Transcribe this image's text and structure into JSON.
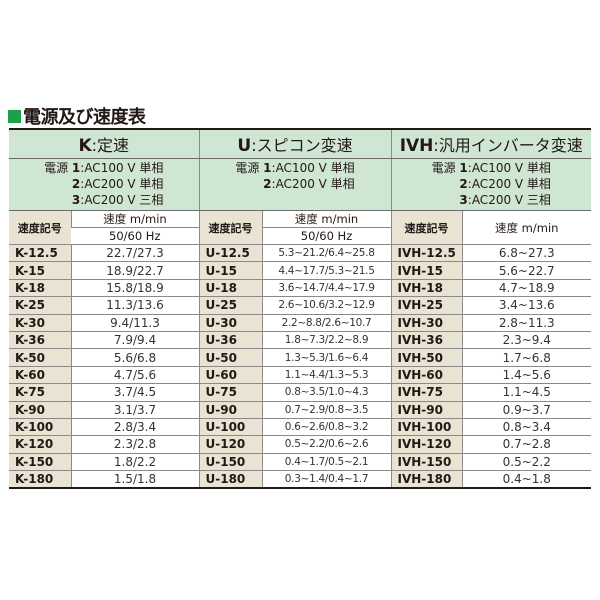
{
  "title": "電源及び速度表",
  "colors": {
    "accent": "#1aa14a",
    "header_bg": "#cfe6d3",
    "code_bg": "#e9e3d3"
  },
  "groups": [
    {
      "prefix": "K",
      "name": "定速",
      "power_label": "電源",
      "power": [
        [
          "1",
          "AC100 V 単相"
        ],
        [
          "2",
          "AC200 V 単相"
        ],
        [
          "3",
          "AC200 V 三相"
        ]
      ],
      "code_header": "速度記号",
      "speed_header": "速度 m/min",
      "freq": "50/60 Hz"
    },
    {
      "prefix": "U",
      "name": "スピコン変速",
      "power_label": "電源",
      "power": [
        [
          "1",
          "AC100 V 単相"
        ],
        [
          "2",
          "AC200 V 単相"
        ]
      ],
      "code_header": "速度記号",
      "speed_header": "速度 m/min",
      "freq": "50/60 Hz"
    },
    {
      "prefix": "IVH",
      "name": "汎用インバータ変速",
      "power_label": "電源",
      "power": [
        [
          "1",
          "AC100 V 単相"
        ],
        [
          "2",
          "AC200 V 単相"
        ],
        [
          "3",
          "AC200 V 三相"
        ]
      ],
      "code_header": "速度記号",
      "speed_header": "速度 m/min",
      "freq": ""
    }
  ],
  "rows": [
    [
      "K-12.5",
      "22.7/27.3",
      "U-12.5",
      "5.3~21.2/6.4~25.8",
      "IVH-12.5",
      "6.8~27.3"
    ],
    [
      "K-15",
      "18.9/22.7",
      "U-15",
      "4.4~17.7/5.3~21.5",
      "IVH-15",
      "5.6~22.7"
    ],
    [
      "K-18",
      "15.8/18.9",
      "U-18",
      "3.6~14.7/4.4~17.9",
      "IVH-18",
      "4.7~18.9"
    ],
    [
      "K-25",
      "11.3/13.6",
      "U-25",
      "2.6~10.6/3.2~12.9",
      "IVH-25",
      "3.4~13.6"
    ],
    [
      "K-30",
      "9.4/11.3",
      "U-30",
      "2.2~8.8/2.6~10.7",
      "IVH-30",
      "2.8~11.3"
    ],
    [
      "K-36",
      "7.9/9.4",
      "U-36",
      "1.8~7.3/2.2~8.9",
      "IVH-36",
      "2.3~9.4"
    ],
    [
      "K-50",
      "5.6/6.8",
      "U-50",
      "1.3~5.3/1.6~6.4",
      "IVH-50",
      "1.7~6.8"
    ],
    [
      "K-60",
      "4.7/5.6",
      "U-60",
      "1.1~4.4/1.3~5.3",
      "IVH-60",
      "1.4~5.6"
    ],
    [
      "K-75",
      "3.7/4.5",
      "U-75",
      "0.8~3.5/1.0~4.3",
      "IVH-75",
      "1.1~4.5"
    ],
    [
      "K-90",
      "3.1/3.7",
      "U-90",
      "0.7~2.9/0.8~3.5",
      "IVH-90",
      "0.9~3.7"
    ],
    [
      "K-100",
      "2.8/3.4",
      "U-100",
      "0.6~2.6/0.8~3.2",
      "IVH-100",
      "0.8~3.4"
    ],
    [
      "K-120",
      "2.3/2.8",
      "U-120",
      "0.5~2.2/0.6~2.6",
      "IVH-120",
      "0.7~2.8"
    ],
    [
      "K-150",
      "1.8/2.2",
      "U-150",
      "0.4~1.7/0.5~2.1",
      "IVH-150",
      "0.5~2.2"
    ],
    [
      "K-180",
      "1.5/1.8",
      "U-180",
      "0.3~1.4/0.4~1.7",
      "IVH-180",
      "0.4~1.8"
    ]
  ]
}
